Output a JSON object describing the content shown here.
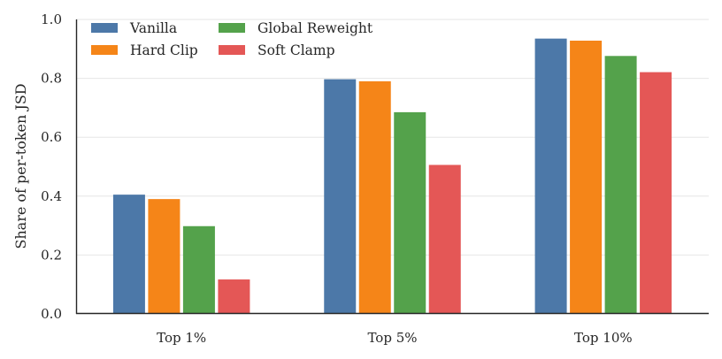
{
  "chart_data": {
    "type": "bar",
    "title": "",
    "xlabel": "",
    "ylabel": "Share of per-token JSD",
    "categories": [
      "Top 1%",
      "Top 5%",
      "Top 10%"
    ],
    "series": [
      {
        "name": "Vanilla",
        "color": "#4c78a8",
        "values": [
          0.405,
          0.797,
          0.935
        ]
      },
      {
        "name": "Hard Clip",
        "color": "#f58518",
        "values": [
          0.39,
          0.79,
          0.928
        ]
      },
      {
        "name": "Global Reweight",
        "color": "#54a24b",
        "values": [
          0.298,
          0.685,
          0.876
        ]
      },
      {
        "name": "Soft Clamp",
        "color": "#e45756",
        "values": [
          0.117,
          0.506,
          0.821
        ]
      }
    ],
    "ylim": [
      0,
      1.0
    ],
    "yticks": [
      "0.0",
      "0.2",
      "0.4",
      "0.6",
      "0.8",
      "1.0"
    ],
    "grid": "horizontal",
    "legend_position": "top-left"
  }
}
